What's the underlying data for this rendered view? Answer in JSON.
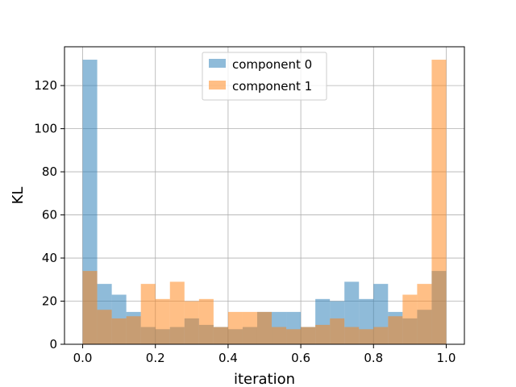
{
  "chart_data": {
    "type": "bar",
    "subtype": "overlapping-histogram",
    "xlabel": "iteration",
    "ylabel": "KL",
    "xlim": [
      -0.05,
      1.05
    ],
    "ylim": [
      0,
      138
    ],
    "xticks": [
      "0.0",
      "0.2",
      "0.4",
      "0.6",
      "0.8",
      "1.0"
    ],
    "xtick_values": [
      0.0,
      0.2,
      0.4,
      0.6,
      0.8,
      1.0
    ],
    "yticks": [
      "0",
      "20",
      "40",
      "60",
      "80",
      "100",
      "120"
    ],
    "ytick_values": [
      0,
      20,
      40,
      60,
      80,
      100,
      120
    ],
    "grid": true,
    "legend_position": "top-center",
    "bin_edges": [
      0.0,
      0.04,
      0.08,
      0.12,
      0.16,
      0.2,
      0.24,
      0.28,
      0.32,
      0.36,
      0.4,
      0.44,
      0.48,
      0.52,
      0.56,
      0.6,
      0.64,
      0.68,
      0.72,
      0.76,
      0.8,
      0.84,
      0.88,
      0.92,
      0.96,
      1.0
    ],
    "series": [
      {
        "name": "component 0",
        "color": "#1f77b4",
        "alpha": 0.5,
        "values": [
          132,
          28,
          23,
          15,
          8,
          7,
          8,
          12,
          9,
          8,
          7,
          8,
          15,
          15,
          15,
          8,
          21,
          20,
          29,
          21,
          28,
          15,
          12,
          16,
          34
        ]
      },
      {
        "name": "component 1",
        "color": "#ff7f0e",
        "alpha": 0.5,
        "values": [
          34,
          16,
          12,
          13,
          28,
          21,
          29,
          20,
          21,
          8,
          15,
          15,
          15,
          8,
          7,
          8,
          9,
          12,
          8,
          7,
          8,
          13,
          23,
          28,
          132
        ]
      }
    ]
  }
}
